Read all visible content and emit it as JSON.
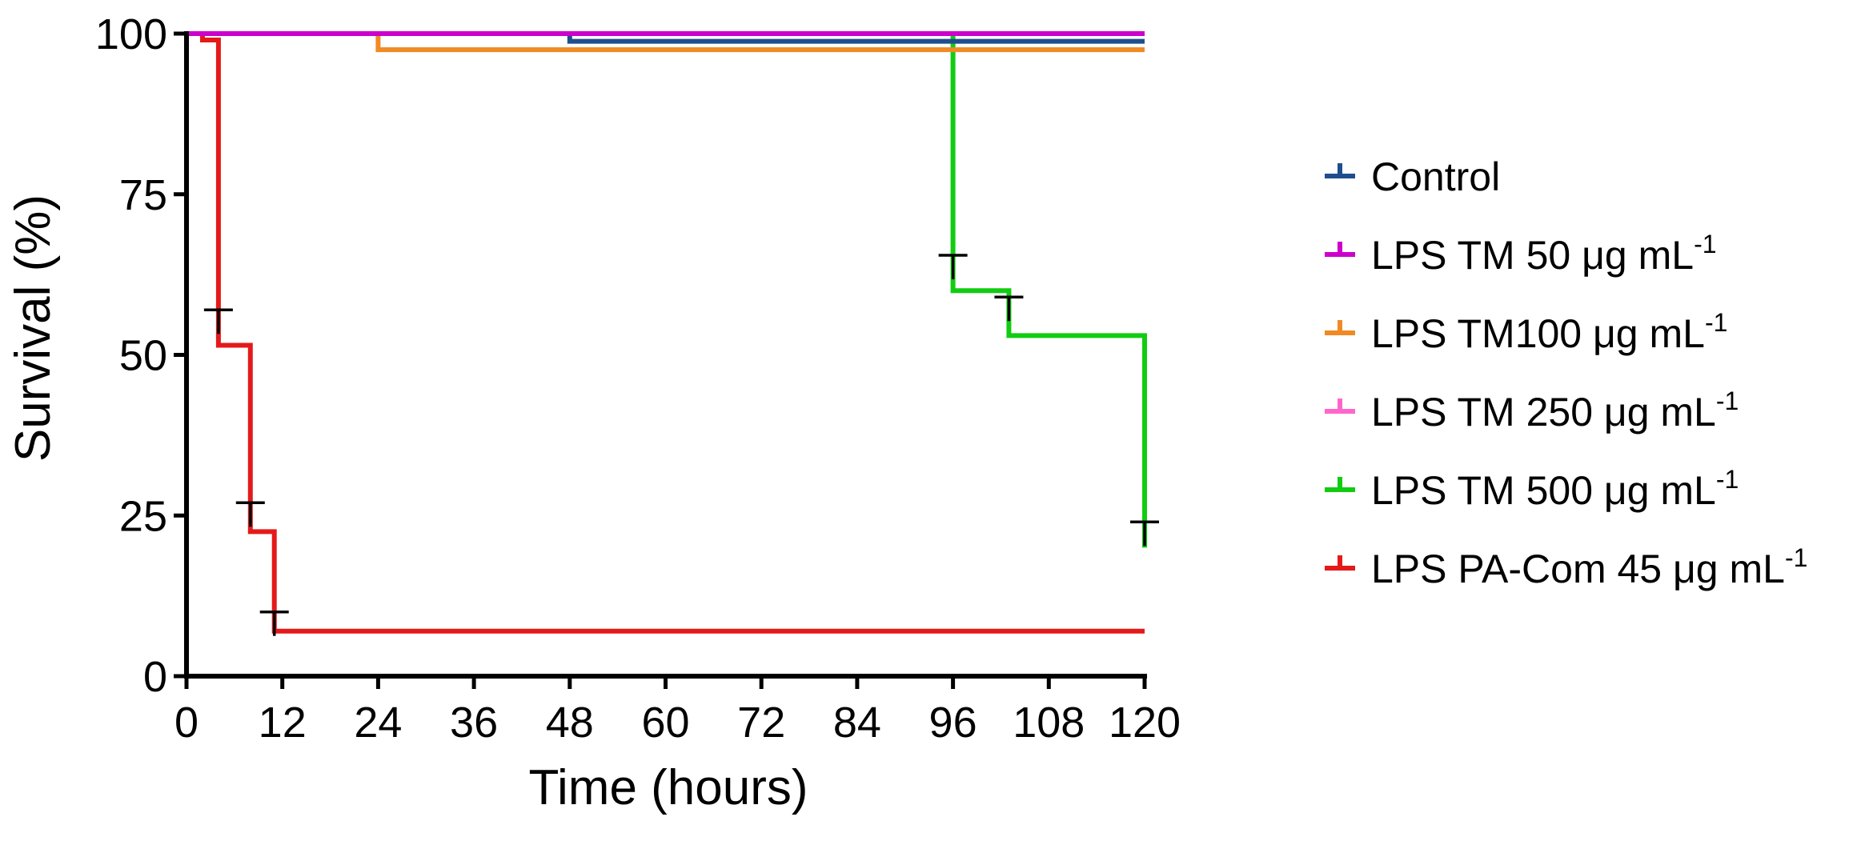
{
  "chart_data": {
    "type": "line",
    "subtype": "kaplan-meier step survival",
    "title": "",
    "xlabel": "Time (hours)",
    "ylabel": "Survival (%)",
    "xlim": [
      0,
      120
    ],
    "ylim": [
      0,
      100
    ],
    "x_ticks": [
      0,
      12,
      24,
      36,
      48,
      60,
      72,
      84,
      96,
      108,
      120
    ],
    "y_ticks": [
      0,
      25,
      50,
      75,
      100
    ],
    "grid": false,
    "legend_position": "right",
    "series": [
      {
        "name": "Control",
        "legend_base": "Control",
        "legend_sup": "",
        "color": "#1f4e8c",
        "x": [
          0,
          48,
          120
        ],
        "y": [
          100,
          98.8,
          98.8
        ],
        "censored_x": [],
        "censored_y": []
      },
      {
        "name": "LPS TM 50 μg mL-1",
        "legend_base": "LPS TM 50 μg mL",
        "legend_sup": "-1",
        "color": "#cc00cc",
        "x": [
          0,
          48,
          120
        ],
        "y": [
          100,
          100,
          100
        ],
        "censored_x": [],
        "censored_y": []
      },
      {
        "name": "LPS TM100 μg mL-1",
        "legend_base": "LPS TM100 μg mL",
        "legend_sup": "-1",
        "color": "#f08a24",
        "x": [
          0,
          24,
          120
        ],
        "y": [
          100,
          97.5,
          97.5
        ],
        "censored_x": [],
        "censored_y": []
      },
      {
        "name": "LPS TM 250 μg mL-1",
        "legend_base": "LPS TM 250 μg mL",
        "legend_sup": "-1",
        "color": "#ff66cc",
        "x": [
          0,
          120
        ],
        "y": [
          100,
          100
        ],
        "censored_x": [],
        "censored_y": []
      },
      {
        "name": "LPS TM 500 μg mL-1",
        "legend_base": "LPS TM 500 μg mL",
        "legend_sup": "-1",
        "color": "#11cc11",
        "x": [
          0,
          96,
          103,
          120
        ],
        "y": [
          100,
          60,
          53,
          20
        ],
        "censored_x": [
          96,
          103,
          120
        ],
        "censored_y": [
          65.5,
          59,
          24
        ]
      },
      {
        "name": "LPS PA-Com 45 μg mL-1",
        "legend_base": "LPS PA-Com 45 μg mL",
        "legend_sup": "-1",
        "color": "#e41a1a",
        "x": [
          0,
          2,
          4,
          8,
          11,
          120
        ],
        "y": [
          100,
          99,
          51.5,
          22.5,
          7,
          7
        ],
        "censored_x": [
          4,
          8,
          11
        ],
        "censored_y": [
          57,
          27,
          10
        ]
      }
    ]
  }
}
